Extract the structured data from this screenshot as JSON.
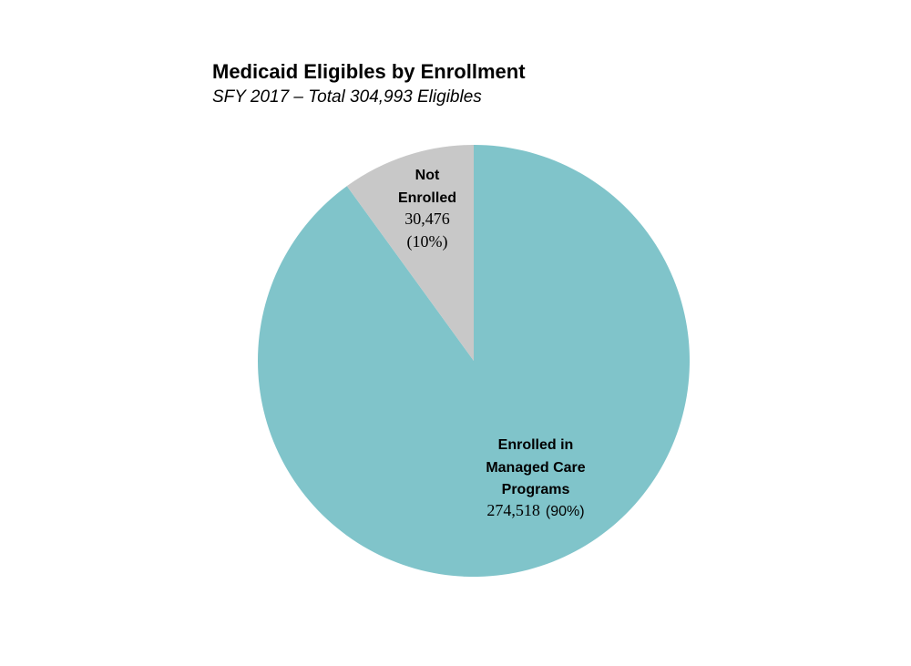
{
  "chart_data": {
    "type": "pie",
    "title": "Medicaid Eligibles by Enrollment",
    "subtitle": "SFY 2017 – Total 304,993 Eligibles",
    "slices": [
      {
        "label_lines": [
          "Enrolled in",
          "Managed Care",
          "Programs"
        ],
        "value": 274518,
        "value_text": "274,518",
        "percent": 90,
        "percent_text": "(90%)",
        "color": "#80c4ca"
      },
      {
        "label_lines": [
          "Not",
          "Enrolled"
        ],
        "value": 30476,
        "value_text": "30,476",
        "percent": 10,
        "percent_text": "(10%)",
        "color": "#c8c8c8"
      }
    ],
    "start_angle_deg": 0,
    "direction": "clockwise",
    "legend": "none"
  }
}
